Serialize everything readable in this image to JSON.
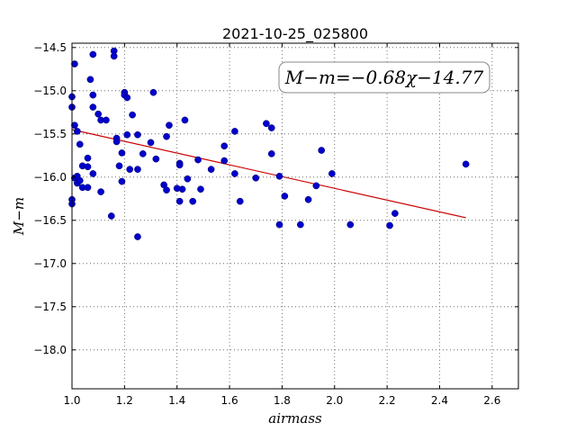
{
  "chart_data": {
    "type": "scatter",
    "title": "2021-10-25_025800",
    "xlabel": "airmass",
    "ylabel": "M−m",
    "xlim": [
      1.0,
      2.7
    ],
    "ylim": [
      -14.45,
      -18.45
    ],
    "y_inverted": true,
    "grid": true,
    "x_ticks": [
      "1.0",
      "1.2",
      "1.4",
      "1.6",
      "1.8",
      "2.0",
      "2.2",
      "2.4",
      "2.6"
    ],
    "x_tick_values": [
      1.0,
      1.2,
      1.4,
      1.6,
      1.8,
      2.0,
      2.2,
      2.4,
      2.6
    ],
    "y_ticks": [
      "−14.5",
      "−15.0",
      "−15.5",
      "−16.0",
      "−16.5",
      "−17.0",
      "−17.5",
      "−18.0"
    ],
    "y_tick_values": [
      -14.5,
      -15.0,
      -15.5,
      -16.0,
      -16.5,
      -17.0,
      -17.5,
      -18.0
    ],
    "annotation": "M−m=−0.68χ−14.77",
    "annotation_position": "top-right",
    "marker_color": "#0000cc",
    "fit_color": "#cc0000",
    "fit_line": {
      "slope": -0.68,
      "intercept": -14.77,
      "x_range": [
        1.0,
        2.5
      ]
    },
    "points": [
      {
        "x": 1.0,
        "y": -15.07
      },
      {
        "x": 1.0,
        "y": -15.19
      },
      {
        "x": 1.0,
        "y": -16.26
      },
      {
        "x": 1.0,
        "y": -16.31
      },
      {
        "x": 1.01,
        "y": -15.4
      },
      {
        "x": 1.01,
        "y": -14.69
      },
      {
        "x": 1.01,
        "y": -16.01
      },
      {
        "x": 1.02,
        "y": -15.47
      },
      {
        "x": 1.02,
        "y": -15.99
      },
      {
        "x": 1.02,
        "y": -16.07
      },
      {
        "x": 1.03,
        "y": -15.62
      },
      {
        "x": 1.03,
        "y": -16.04
      },
      {
        "x": 1.04,
        "y": -16.12
      },
      {
        "x": 1.04,
        "y": -15.87
      },
      {
        "x": 1.06,
        "y": -15.78
      },
      {
        "x": 1.06,
        "y": -15.88
      },
      {
        "x": 1.06,
        "y": -16.12
      },
      {
        "x": 1.07,
        "y": -14.87
      },
      {
        "x": 1.08,
        "y": -14.58
      },
      {
        "x": 1.08,
        "y": -15.05
      },
      {
        "x": 1.08,
        "y": -15.19
      },
      {
        "x": 1.08,
        "y": -15.96
      },
      {
        "x": 1.1,
        "y": -15.27
      },
      {
        "x": 1.11,
        "y": -15.34
      },
      {
        "x": 1.11,
        "y": -16.17
      },
      {
        "x": 1.13,
        "y": -15.34
      },
      {
        "x": 1.15,
        "y": -16.45
      },
      {
        "x": 1.16,
        "y": -14.54
      },
      {
        "x": 1.16,
        "y": -14.6
      },
      {
        "x": 1.17,
        "y": -15.55
      },
      {
        "x": 1.17,
        "y": -15.59
      },
      {
        "x": 1.18,
        "y": -15.87
      },
      {
        "x": 1.19,
        "y": -15.72
      },
      {
        "x": 1.19,
        "y": -16.05
      },
      {
        "x": 1.2,
        "y": -15.02
      },
      {
        "x": 1.2,
        "y": -15.05
      },
      {
        "x": 1.21,
        "y": -15.08
      },
      {
        "x": 1.21,
        "y": -15.51
      },
      {
        "x": 1.22,
        "y": -15.91
      },
      {
        "x": 1.23,
        "y": -15.28
      },
      {
        "x": 1.25,
        "y": -15.51
      },
      {
        "x": 1.25,
        "y": -15.91
      },
      {
        "x": 1.25,
        "y": -16.69
      },
      {
        "x": 1.27,
        "y": -15.73
      },
      {
        "x": 1.3,
        "y": -15.6
      },
      {
        "x": 1.31,
        "y": -15.02
      },
      {
        "x": 1.32,
        "y": -15.79
      },
      {
        "x": 1.35,
        "y": -16.09
      },
      {
        "x": 1.36,
        "y": -16.15
      },
      {
        "x": 1.36,
        "y": -15.53
      },
      {
        "x": 1.37,
        "y": -15.4
      },
      {
        "x": 1.4,
        "y": -16.13
      },
      {
        "x": 1.41,
        "y": -15.84
      },
      {
        "x": 1.41,
        "y": -15.86
      },
      {
        "x": 1.41,
        "y": -16.28
      },
      {
        "x": 1.42,
        "y": -16.14
      },
      {
        "x": 1.43,
        "y": -15.34
      },
      {
        "x": 1.44,
        "y": -16.02
      },
      {
        "x": 1.46,
        "y": -16.28
      },
      {
        "x": 1.48,
        "y": -15.8
      },
      {
        "x": 1.49,
        "y": -16.14
      },
      {
        "x": 1.53,
        "y": -15.91
      },
      {
        "x": 1.58,
        "y": -15.64
      },
      {
        "x": 1.58,
        "y": -15.81
      },
      {
        "x": 1.62,
        "y": -15.47
      },
      {
        "x": 1.62,
        "y": -15.96
      },
      {
        "x": 1.64,
        "y": -16.28
      },
      {
        "x": 1.7,
        "y": -16.01
      },
      {
        "x": 1.74,
        "y": -15.38
      },
      {
        "x": 1.76,
        "y": -15.43
      },
      {
        "x": 1.76,
        "y": -15.73
      },
      {
        "x": 1.79,
        "y": -15.99
      },
      {
        "x": 1.79,
        "y": -16.55
      },
      {
        "x": 1.81,
        "y": -16.22
      },
      {
        "x": 1.87,
        "y": -16.55
      },
      {
        "x": 1.9,
        "y": -16.26
      },
      {
        "x": 1.93,
        "y": -16.1
      },
      {
        "x": 1.95,
        "y": -15.69
      },
      {
        "x": 1.99,
        "y": -15.96
      },
      {
        "x": 2.06,
        "y": -16.55
      },
      {
        "x": 2.21,
        "y": -16.56
      },
      {
        "x": 2.23,
        "y": -16.42
      },
      {
        "x": 2.5,
        "y": -15.85
      }
    ]
  }
}
